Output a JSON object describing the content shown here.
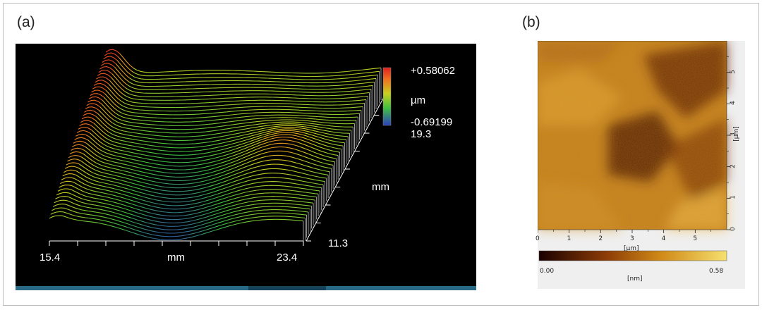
{
  "figure": {
    "panel_a_label": "(a)",
    "panel_b_label": "(b)"
  },
  "panel_a": {
    "colorbar": {
      "max": "+0.58062",
      "unit": "µm",
      "min": "-0.69199"
    },
    "y_axis": {
      "max": "19.3",
      "min": "11.3",
      "unit": "mm"
    },
    "x_axis": {
      "min": "15.4",
      "max": "23.4",
      "unit": "mm"
    },
    "colors": {
      "background": "#000000",
      "high": "#e03020",
      "mid": "#40c040",
      "low": "#3050c0"
    }
  },
  "panel_b": {
    "x_ticks": [
      "0",
      "1",
      "2",
      "3",
      "4",
      "5"
    ],
    "x_unit": "[µm]",
    "y_ticks": [
      "0",
      "1",
      "2",
      "3",
      "4",
      "5"
    ],
    "y_unit": "[µm]",
    "colorbar": {
      "min": "0.00",
      "max": "0.58",
      "unit": "[nm]"
    },
    "colors": {
      "dark": "#3a0a00",
      "mid": "#b8650a",
      "light": "#f2d860"
    }
  },
  "chart_data": [
    {
      "type": "heatmap",
      "panel": "(a)",
      "description_kind": "3d surface profile",
      "x_range": [
        15.4,
        23.4
      ],
      "x_unit": "mm",
      "y_range": [
        11.3,
        19.3
      ],
      "y_unit": "mm",
      "z_range": [
        -0.69199,
        0.58062
      ],
      "z_unit": "µm"
    },
    {
      "type": "heatmap",
      "panel": "(b)",
      "x_range": [
        0,
        6
      ],
      "x_unit": "µm",
      "y_range": [
        0,
        6
      ],
      "y_unit": "µm",
      "z_range": [
        0.0,
        0.58
      ],
      "z_unit": "nm"
    }
  ]
}
